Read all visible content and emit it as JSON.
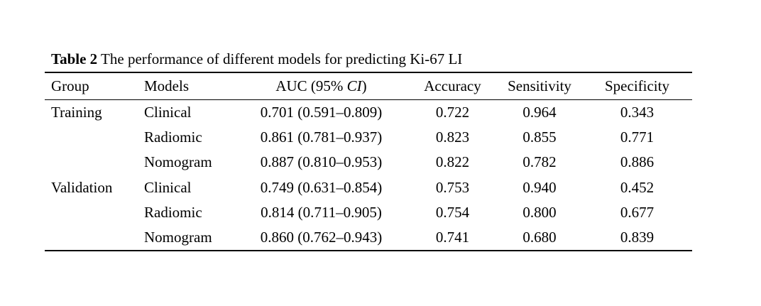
{
  "title": {
    "label": "Table 2",
    "text": " The performance of different models for predicting Ki-67 LI"
  },
  "table": {
    "headers": {
      "group": "Group",
      "models": "Models",
      "auc_prefix": "AUC (95% ",
      "auc_italic": "CI",
      "auc_suffix": ")",
      "accuracy": "Accuracy",
      "sensitivity": "Sensitivity",
      "specificity": "Specificity"
    },
    "rows": [
      {
        "group": "Training",
        "model": "Clinical",
        "auc": "0.701 (0.591–0.809)",
        "accuracy": "0.722",
        "sensitivity": "0.964",
        "specificity": "0.343"
      },
      {
        "group": "",
        "model": "Radiomic",
        "auc": "0.861 (0.781–0.937)",
        "accuracy": "0.823",
        "sensitivity": "0.855",
        "specificity": "0.771"
      },
      {
        "group": "",
        "model": "Nomogram",
        "auc": "0.887 (0.810–0.953)",
        "accuracy": "0.822",
        "sensitivity": "0.782",
        "specificity": "0.886"
      },
      {
        "group": "Validation",
        "model": "Clinical",
        "auc": "0.749 (0.631–0.854)",
        "accuracy": "0.753",
        "sensitivity": "0.940",
        "specificity": "0.452"
      },
      {
        "group": "",
        "model": "Radiomic",
        "auc": "0.814 (0.711–0.905)",
        "accuracy": "0.754",
        "sensitivity": "0.800",
        "specificity": "0.677"
      },
      {
        "group": "",
        "model": "Nomogram",
        "auc": "0.860 (0.762–0.943)",
        "accuracy": "0.741",
        "sensitivity": "0.680",
        "specificity": "0.839"
      }
    ]
  }
}
